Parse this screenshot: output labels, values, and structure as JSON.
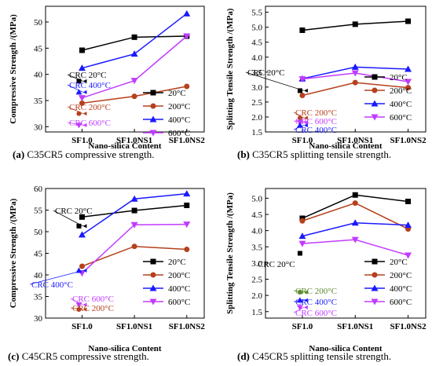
{
  "chart_data": [
    {
      "type": "line",
      "caption_label": "(a)",
      "caption_text": "C35CR5 compressive strength.",
      "xlabel": "Nano-silica  Content",
      "ylabel": "Compressive  Strength  /(MPa)",
      "categories": [
        "SF1.0",
        "SF1.0NS1",
        "SF1.0NS2"
      ],
      "ylim": [
        29,
        53
      ],
      "yticks": [
        30,
        35,
        40,
        45,
        50
      ],
      "legend_position": "inside-right",
      "series": [
        {
          "name": "20°C",
          "color": "#000000",
          "marker": "square",
          "values": [
            44.6,
            47.1,
            47.3
          ]
        },
        {
          "name": "200°C",
          "color": "#b5401c",
          "marker": "circle",
          "values": [
            34.5,
            35.8,
            37.7
          ]
        },
        {
          "name": "400°C",
          "color": "#1a1aff",
          "marker": "triangle-up",
          "values": [
            41.2,
            43.9,
            51.6
          ]
        },
        {
          "name": "600°C",
          "color": "#c23bff",
          "marker": "triangle-down",
          "values": [
            35.5,
            38.8,
            47.3
          ]
        }
      ],
      "reference_points": [
        {
          "label": "CRC 20°C",
          "value": 38.7,
          "color": "#000000",
          "marker": "square"
        },
        {
          "label": "CRC 400°C",
          "value": 36.6,
          "color": "#1a1aff",
          "marker": "triangle-up"
        },
        {
          "label": "CRC 200°C",
          "value": 32.5,
          "color": "#b5401c",
          "marker": "circle"
        },
        {
          "label": "CRC 600°C",
          "value": 30.3,
          "color": "#c23bff",
          "marker": "triangle-down"
        }
      ]
    },
    {
      "type": "line",
      "caption_label": "(b)",
      "caption_text": "C35CR5 splitting tensile strength.",
      "xlabel": "Nano-silica  Content",
      "ylabel": "Splitting Tensile Strength  /(MPa)",
      "categories": [
        "SF1.0",
        "SF1.0NS1",
        "SF1.0NS2"
      ],
      "ylim": [
        1.5,
        5.7
      ],
      "yticks": [
        1.5,
        2.0,
        2.5,
        3.0,
        3.5,
        4.0,
        4.5,
        5.0,
        5.5
      ],
      "legend_position": "bottom-right",
      "series": [
        {
          "name": "20°C",
          "color": "#000000",
          "marker": "square",
          "values": [
            4.9,
            5.1,
            5.2
          ]
        },
        {
          "name": "200°C",
          "color": "#b5401c",
          "marker": "circle",
          "values": [
            2.72,
            3.15,
            2.98
          ]
        },
        {
          "name": "400°C",
          "color": "#1a1aff",
          "marker": "triangle-up",
          "values": [
            3.28,
            3.67,
            3.6
          ]
        },
        {
          "name": "600°C",
          "color": "#c23bff",
          "marker": "triangle-down",
          "values": [
            3.27,
            3.47,
            3.18
          ]
        }
      ],
      "reference_points": [
        {
          "label": "CRC 20°C",
          "value": 2.88,
          "color": "#000000",
          "marker": "square"
        },
        {
          "label": "CRC 200°C",
          "value": 1.97,
          "color": "#b5401c",
          "marker": "circle"
        },
        {
          "label": "CRC 600°C",
          "value": 1.82,
          "color": "#c23bff",
          "marker": "triangle-down"
        },
        {
          "label": "CRC 400°C",
          "value": 1.72,
          "color": "#1a1aff",
          "marker": "triangle-up"
        }
      ]
    },
    {
      "type": "line",
      "caption_label": "(c)",
      "caption_text": "C45CR5 compressive strength.",
      "xlabel": "Nano-silica  Content",
      "ylabel": "Compressive  Strength  /(MPa)",
      "categories": [
        "SF1.0",
        "SF1.0NS1",
        "SF1.0NS2"
      ],
      "ylim": [
        30,
        60
      ],
      "yticks": [
        30,
        35,
        40,
        45,
        50,
        55,
        60
      ],
      "legend_position": "bottom-right",
      "series": [
        {
          "name": "20°C",
          "color": "#000000",
          "marker": "square",
          "values": [
            53.4,
            54.9,
            56.1
          ]
        },
        {
          "name": "200°C",
          "color": "#b5401c",
          "marker": "circle",
          "values": [
            42.0,
            46.6,
            45.9
          ]
        },
        {
          "name": "400°C",
          "color": "#1a1aff",
          "marker": "triangle-up",
          "values": [
            49.3,
            57.6,
            58.8
          ]
        },
        {
          "name": "600°C",
          "color": "#c23bff",
          "marker": "triangle-down",
          "values": [
            40.4,
            51.6,
            51.7
          ]
        }
      ],
      "reference_points": [
        {
          "label": "CRC 20°C",
          "value": 51.3,
          "color": "#000000",
          "marker": "square"
        },
        {
          "label": "CRC 400°C",
          "value": 41.0,
          "color": "#1a1aff",
          "marker": "triangle-up"
        },
        {
          "label": "CRC 600°C",
          "value": 33.1,
          "color": "#c23bff",
          "marker": "triangle-down"
        },
        {
          "label": "CRC 200°C",
          "value": 32.0,
          "color": "#b5401c",
          "marker": "circle"
        }
      ]
    },
    {
      "type": "line",
      "caption_label": "(d)",
      "caption_text": "C45CR5 splitting tensile strength.",
      "xlabel": "Nano-silica  Content",
      "ylabel": "Splitting Tensile Strength  /(MPa)",
      "categories": [
        "SF1.0",
        "SF1.0NS1",
        "SF1.0NS2"
      ],
      "ylim": [
        1.3,
        5.3
      ],
      "yticks": [
        1.5,
        2.0,
        2.5,
        3.0,
        3.5,
        4.0,
        4.5,
        5.0
      ],
      "legend_position": "bottom-right",
      "series": [
        {
          "name": "20°C",
          "color": "#000000",
          "marker": "square",
          "values": [
            4.38,
            5.1,
            4.9
          ]
        },
        {
          "name": "200°C",
          "color": "#b5401c",
          "marker": "circle",
          "values": [
            4.3,
            4.85,
            4.05
          ]
        },
        {
          "name": "400°C",
          "color": "#1a1aff",
          "marker": "triangle-up",
          "values": [
            3.83,
            4.24,
            4.17
          ]
        },
        {
          "name": "600°C",
          "color": "#c23bff",
          "marker": "triangle-down",
          "values": [
            3.6,
            3.72,
            3.24
          ]
        }
      ],
      "reference_points": [
        {
          "label": "CRC 20°C",
          "value": 3.3,
          "color": "#000000",
          "marker": "square"
        },
        {
          "label": "CRC 200°C",
          "value": 2.1,
          "color": "#5b8a2d",
          "marker": "circle"
        },
        {
          "label": "CRC 400°C",
          "value": 1.85,
          "color": "#1a1aff",
          "marker": "triangle-up"
        },
        {
          "label": "CRC 600°C",
          "value": 1.63,
          "color": "#c23bff",
          "marker": "triangle-down"
        }
      ]
    }
  ]
}
